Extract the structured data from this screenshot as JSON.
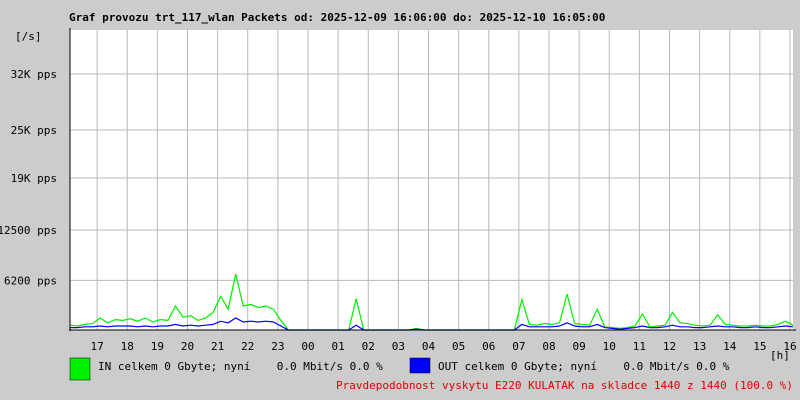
{
  "chart_data": {
    "type": "line",
    "title": "Graf provozu trt_117_wlan Packets od: 2025-12-09 16:06:00 do: 2025-12-10 16:05:00",
    "y_label": "[/s]",
    "x_label": "[h]",
    "annotation": "Pravdepodobnost vyskytu E220 KULATAK na skladce 1440 z 1440 (100.0 %)",
    "grid": true,
    "xlim": [
      0.1,
      24.1
    ],
    "xticks": [
      {
        "value": 1,
        "label": "17"
      },
      {
        "value": 2,
        "label": "18"
      },
      {
        "value": 3,
        "label": "19"
      },
      {
        "value": 4,
        "label": "20"
      },
      {
        "value": 5,
        "label": "21"
      },
      {
        "value": 6,
        "label": "22"
      },
      {
        "value": 7,
        "label": "23"
      },
      {
        "value": 8,
        "label": "00"
      },
      {
        "value": 9,
        "label": "01"
      },
      {
        "value": 10,
        "label": "02"
      },
      {
        "value": 11,
        "label": "03"
      },
      {
        "value": 12,
        "label": "04"
      },
      {
        "value": 13,
        "label": "05"
      },
      {
        "value": 14,
        "label": "06"
      },
      {
        "value": 15,
        "label": "07"
      },
      {
        "value": 16,
        "label": "08"
      },
      {
        "value": 17,
        "label": "09"
      },
      {
        "value": 18,
        "label": "10"
      },
      {
        "value": 19,
        "label": "11"
      },
      {
        "value": 20,
        "label": "12"
      },
      {
        "value": 21,
        "label": "13"
      },
      {
        "value": 22,
        "label": "14"
      },
      {
        "value": 23,
        "label": "15"
      },
      {
        "value": 24,
        "label": "16"
      }
    ],
    "ylim": [
      0,
      37500
    ],
    "yticks": [
      {
        "value": 6200,
        "label": "6200 pps"
      },
      {
        "value": 12500,
        "label": "12500 pps"
      },
      {
        "value": 19000,
        "label": "19K pps"
      },
      {
        "value": 25000,
        "label": "25K pps"
      },
      {
        "value": 32000,
        "label": "32K pps"
      }
    ],
    "x": [
      0.1,
      0.35,
      0.6,
      0.85,
      1.1,
      1.35,
      1.6,
      1.85,
      2.1,
      2.35,
      2.6,
      2.85,
      3.1,
      3.35,
      3.6,
      3.85,
      4.1,
      4.35,
      4.6,
      4.85,
      5.1,
      5.35,
      5.6,
      5.85,
      6.1,
      6.35,
      6.6,
      6.85,
      7.1,
      7.35,
      7.6,
      7.85,
      8.1,
      8.35,
      8.6,
      8.85,
      9.1,
      9.35,
      9.6,
      9.85,
      10.1,
      10.35,
      10.6,
      10.85,
      11.1,
      11.35,
      11.6,
      11.85,
      12.1,
      12.35,
      12.6,
      12.85,
      13.1,
      13.35,
      13.6,
      13.85,
      14.1,
      14.35,
      14.6,
      14.85,
      15.1,
      15.35,
      15.6,
      15.85,
      16.1,
      16.35,
      16.6,
      16.85,
      17.1,
      17.35,
      17.6,
      17.85,
      18.1,
      18.35,
      18.6,
      18.85,
      19.1,
      19.35,
      19.6,
      19.85,
      20.1,
      20.35,
      20.6,
      20.85,
      21.1,
      21.35,
      21.6,
      21.85,
      22.1,
      22.35,
      22.6,
      22.85,
      23.1,
      23.35,
      23.6,
      23.85,
      24.1
    ],
    "series": [
      {
        "name": "IN celkem 0 Gbyte; nyní    0.0 Mbit/s 0.0 %",
        "color": "#00f000",
        "values": [
          600,
          500,
          700,
          800,
          1500,
          900,
          1300,
          1200,
          1400,
          1100,
          1500,
          1000,
          1300,
          1200,
          3000,
          1600,
          1800,
          1200,
          1500,
          2200,
          4200,
          2600,
          7000,
          3000,
          3200,
          2800,
          3000,
          2600,
          1200,
          0,
          0,
          0,
          0,
          0,
          0,
          0,
          0,
          0,
          3900,
          0,
          0,
          0,
          0,
          0,
          0,
          0,
          200,
          0,
          0,
          0,
          0,
          0,
          0,
          0,
          0,
          0,
          0,
          0,
          0,
          0,
          3800,
          700,
          600,
          800,
          700,
          900,
          4500,
          800,
          700,
          600,
          2600,
          400,
          300,
          200,
          300,
          500,
          2000,
          400,
          500,
          600,
          2200,
          900,
          800,
          600,
          500,
          600,
          1900,
          700,
          600,
          500,
          500,
          600,
          500,
          500,
          700,
          1100,
          600
        ]
      },
      {
        "name": "OUT celkem 0 Gbyte; nyní    0.0 Mbit/s 0.0 %",
        "color": "#0000ff",
        "values": [
          300,
          300,
          400,
          400,
          500,
          400,
          500,
          500,
          500,
          400,
          500,
          400,
          500,
          500,
          700,
          500,
          600,
          500,
          600,
          700,
          1100,
          900,
          1500,
          1000,
          1100,
          1000,
          1100,
          1000,
          500,
          0,
          0,
          0,
          0,
          0,
          0,
          0,
          0,
          0,
          600,
          0,
          0,
          0,
          0,
          0,
          0,
          0,
          100,
          0,
          0,
          0,
          0,
          0,
          0,
          0,
          0,
          0,
          0,
          0,
          0,
          0,
          700,
          400,
          400,
          400,
          400,
          500,
          900,
          500,
          400,
          400,
          700,
          300,
          200,
          100,
          200,
          300,
          500,
          300,
          300,
          400,
          600,
          400,
          400,
          300,
          300,
          400,
          500,
          400,
          400,
          300,
          300,
          400,
          300,
          300,
          400,
          500,
          400
        ]
      }
    ]
  }
}
